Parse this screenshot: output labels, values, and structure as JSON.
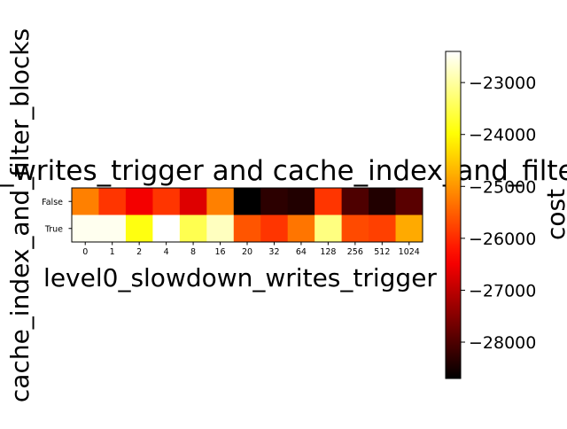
{
  "chart_data": {
    "type": "heatmap",
    "title": "_writes_trigger and cache_index_and_filter_blocks",
    "xlabel": "level0_slowdown_writes_trigger",
    "ylabel": "cache_index_and_filter_blocks",
    "x_categories": [
      "0",
      "1",
      "2",
      "4",
      "8",
      "16",
      "20",
      "32",
      "64",
      "128",
      "256",
      "512",
      "1024"
    ],
    "y_categories": [
      "False",
      "True"
    ],
    "values": [
      [
        -25200,
        -25900,
        -26500,
        -25900,
        -26700,
        -25200,
        -28700,
        -28300,
        -28400,
        -25900,
        -28000,
        -28400,
        -27900
      ],
      [
        -22500,
        -22500,
        -23900,
        -22400,
        -23500,
        -22800,
        -25600,
        -25900,
        -25300,
        -23200,
        -25700,
        -25800,
        -24800
      ]
    ],
    "colorbar": {
      "label": "cost",
      "colormap": "hot",
      "vmin": -28700,
      "vmax": -22400,
      "ticks": [
        -23000,
        -24000,
        -25000,
        -26000,
        -27000,
        -28000
      ],
      "tick_labels": [
        "−23000",
        "−24000",
        "−25000",
        "−26000",
        "−27000",
        "−28000"
      ]
    },
    "grid": false
  }
}
